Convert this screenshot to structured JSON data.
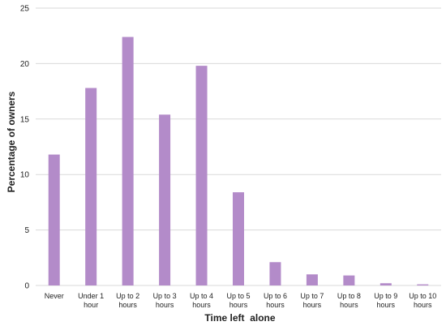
{
  "chart_data": {
    "type": "bar",
    "title": "",
    "xlabel": "Time left  alone",
    "ylabel": "Percentage of owners",
    "ylim": [
      0,
      25
    ],
    "yticks": [
      0,
      5,
      10,
      15,
      20,
      25
    ],
    "grid": true,
    "legend": "none",
    "bar_color": "#B38BC9",
    "grid_color": "#D9D9D9",
    "categories": [
      [
        "Never"
      ],
      [
        "Under 1",
        "hour"
      ],
      [
        "Up to 2",
        "hours"
      ],
      [
        "Up to 3",
        "hours"
      ],
      [
        "Up to 4",
        "hours"
      ],
      [
        "Up to 5",
        "hours"
      ],
      [
        "Up to 6",
        "hours"
      ],
      [
        "Up to 7",
        "hours"
      ],
      [
        "Up to 8",
        "hours"
      ],
      [
        "Up to 9",
        "hours"
      ],
      [
        "Up to 10",
        "hours"
      ]
    ],
    "values": [
      11.8,
      17.8,
      22.4,
      15.4,
      19.8,
      8.4,
      2.1,
      1.0,
      0.9,
      0.2,
      0.1
    ]
  }
}
